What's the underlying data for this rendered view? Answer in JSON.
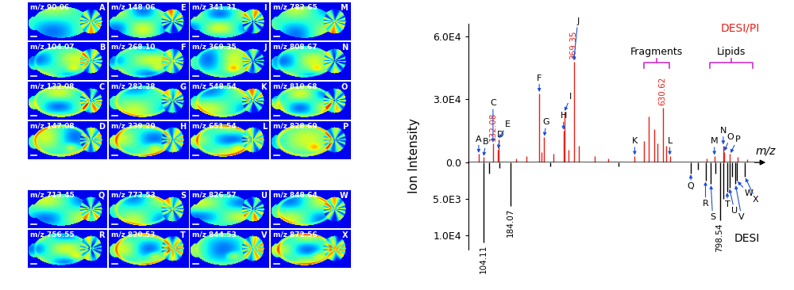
{
  "chart_data": [
    {
      "type": "stem",
      "title": "DESI/PI",
      "ylabel": "Ion Intensity",
      "xlabel": "m/z",
      "xlim": [
        60,
        900
      ],
      "ylim": [
        0,
        66000
      ],
      "yticks": [
        {
          "value": 0,
          "label": "0.0"
        },
        {
          "value": 30000,
          "label": "3.0E4"
        },
        {
          "value": 60000,
          "label": "6.0E4"
        }
      ],
      "tick_labels": "y",
      "series": [
        {
          "color": "#e8211a",
          "x": [
            90.06,
            104.07,
            132.08,
            147.08,
            148.06,
            200,
            230,
            268.1,
            275,
            282.28,
            310,
            339.29,
            341.31,
            355,
            369.35,
            385,
            430,
            470,
            548.54,
            575,
            590,
            605,
            615,
            630.62,
            640,
            651.54,
            760,
            782.65,
            808.67,
            810.68,
            828.69,
            850,
            880
          ],
          "values": [
            4000,
            2500,
            9000,
            6000,
            11000,
            2000,
            3000,
            33000,
            5000,
            12000,
            4000,
            15000,
            24000,
            6000,
            48000,
            8000,
            3000,
            2000,
            3000,
            10000,
            22000,
            16000,
            9000,
            26000,
            8000,
            3000,
            2000,
            3000,
            8000,
            5000,
            4000,
            2500,
            1500
          ],
          "peak_labels": [
            "A",
            "B",
            "C",
            "D",
            "E",
            null,
            null,
            "F",
            null,
            "G",
            null,
            "H",
            "I",
            null,
            "J",
            null,
            null,
            null,
            "K",
            null,
            null,
            null,
            null,
            null,
            null,
            "L",
            null,
            "M",
            "N",
            "O",
            "P",
            null,
            null
          ],
          "x_labels": [
            null,
            null,
            "132.08",
            null,
            null,
            null,
            null,
            null,
            null,
            null,
            null,
            null,
            null,
            null,
            "369.35",
            null,
            null,
            null,
            null,
            null,
            null,
            null,
            null,
            "630.62",
            null,
            null,
            null,
            null,
            null,
            null,
            null,
            null,
            null
          ]
        }
      ],
      "annotations": [
        {
          "text": "Fragments",
          "x": [
            575,
            650
          ]
        },
        {
          "text": "Lipids",
          "x": [
            770,
            895
          ]
        }
      ]
    },
    {
      "type": "stem",
      "title": "DESI",
      "xlim": [
        60,
        900
      ],
      "ylim": [
        12000,
        0
      ],
      "yticks": [
        {
          "value": 5000,
          "label": "5.0E3"
        },
        {
          "value": 10000,
          "label": "1.0E4"
        }
      ],
      "tick_labels": "y",
      "series": [
        {
          "color": "#000000",
          "x": [
            104.11,
            120,
            150,
            184.07,
            300,
            500,
            713.45,
            735,
            756.55,
            772.53,
            786,
            798.54,
            810,
            820.53,
            826.57,
            834,
            844.53,
            848.64,
            872.56
          ],
          "values": [
            11000,
            1500,
            800,
            6000,
            500,
            600,
            1500,
            1000,
            2500,
            3000,
            1500,
            8000,
            5000,
            4000,
            3500,
            2000,
            3000,
            2500,
            2000
          ],
          "peak_labels": [
            null,
            null,
            null,
            null,
            null,
            null,
            "Q",
            null,
            "R",
            "S",
            null,
            null,
            null,
            "T",
            "U",
            null,
            "V",
            "W",
            "X"
          ],
          "x_labels": [
            "104.11",
            null,
            null,
            "184.07",
            null,
            null,
            null,
            null,
            null,
            null,
            null,
            "798.54",
            null,
            null,
            null,
            null,
            null,
            null,
            null
          ]
        }
      ]
    }
  ],
  "image_panels": {
    "prefix": "m/z",
    "groups": [
      [
        {
          "letter": "A",
          "mz": "90.06"
        },
        {
          "letter": "B",
          "mz": "104.07"
        },
        {
          "letter": "C",
          "mz": "132.08"
        },
        {
          "letter": "D",
          "mz": "147.08"
        },
        {
          "letter": "E",
          "mz": "148.06"
        },
        {
          "letter": "F",
          "mz": "268.10"
        },
        {
          "letter": "G",
          "mz": "282.28"
        },
        {
          "letter": "H",
          "mz": "339.29"
        },
        {
          "letter": "I",
          "mz": "341.31"
        },
        {
          "letter": "J",
          "mz": "369.35"
        },
        {
          "letter": "K",
          "mz": "548.54"
        },
        {
          "letter": "L",
          "mz": "651.54"
        },
        {
          "letter": "M",
          "mz": "782.65"
        },
        {
          "letter": "N",
          "mz": "808.67"
        },
        {
          "letter": "O",
          "mz": "810.68"
        },
        {
          "letter": "P",
          "mz": "828.69"
        }
      ],
      [
        {
          "letter": "Q",
          "mz": "713.45"
        },
        {
          "letter": "R",
          "mz": "756.55"
        },
        {
          "letter": "S",
          "mz": "772.53"
        },
        {
          "letter": "T",
          "mz": "820.53"
        },
        {
          "letter": "U",
          "mz": "826.57"
        },
        {
          "letter": "V",
          "mz": "844.53"
        },
        {
          "letter": "W",
          "mz": "848.64"
        },
        {
          "letter": "X",
          "mz": "872.56"
        }
      ]
    ]
  }
}
